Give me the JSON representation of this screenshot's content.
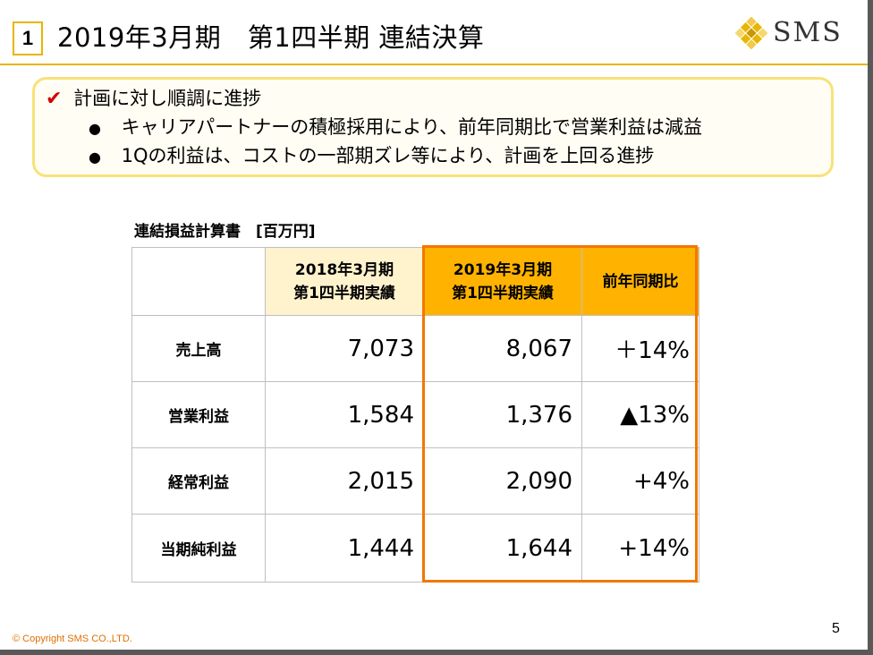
{
  "header": {
    "slide_number": "1",
    "title": "2019年3月期　第1四半期 連結決算",
    "logo_text": "SMS",
    "accent_color": "#e8b600"
  },
  "callout": {
    "check_icon": "check-icon",
    "headline": "計画に対し順調に進捗",
    "bullets": [
      "キャリアパートナーの積極採用により、前年同期比で営業利益は減益",
      "1Qの利益は、コストの一部期ズレ等により、計画を上回る進捗"
    ]
  },
  "table": {
    "caption": "連結損益計算書　[百万円]",
    "columns": [
      "2018年3月期\n第1四半期実績",
      "2019年3月期\n第1四半期実績",
      "前年同期比"
    ],
    "col_prev_line1": "2018年3月期",
    "col_prev_line2": "第1四半期実績",
    "col_cur_line1": "2019年3月期",
    "col_cur_line2": "第1四半期実績",
    "col_yoy": "前年同期比",
    "rows": [
      {
        "label": "売上高",
        "prev": "7,073",
        "cur": "8,067",
        "yoy": "＋14%"
      },
      {
        "label": "営業利益",
        "prev": "1,584",
        "cur": "1,376",
        "yoy": "▲13%"
      },
      {
        "label": "経常利益",
        "prev": "2,015",
        "cur": "2,090",
        "yoy": "+4%"
      },
      {
        "label": "当期純利益",
        "prev": "1,444",
        "cur": "1,644",
        "yoy": "+14%"
      }
    ],
    "highlight_color": "#f07800",
    "current_header_color": "#ffb300",
    "prev_header_color": "#fff3cd"
  },
  "footer": {
    "copyright": "© Copyright SMS CO.,LTD.",
    "page_number": "5"
  }
}
